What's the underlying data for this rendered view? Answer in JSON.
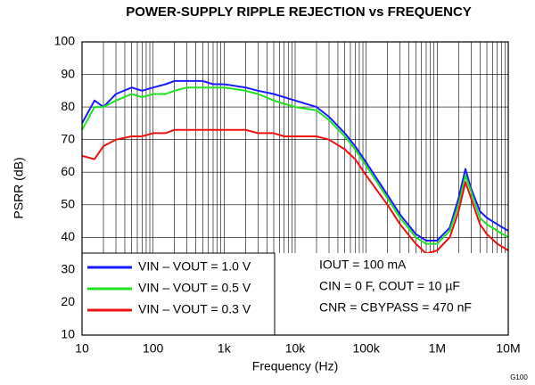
{
  "chart_data": {
    "type": "line",
    "title": "POWER-SUPPLY RIPPLE REJECTION vs FREQUENCY",
    "x_label": "Frequency (Hz)",
    "y_label": "PSRR (dB)",
    "figure_id": "G100",
    "x_log": true,
    "grid": true,
    "legend": "lower left",
    "x": [
      10,
      15,
      20,
      30,
      50,
      70,
      100,
      150,
      200,
      300,
      500,
      700,
      1000,
      2000,
      3000,
      5000,
      7000,
      10000,
      20000,
      30000,
      50000,
      70000,
      100000,
      200000,
      300000,
      500000,
      700000,
      1000000,
      1500000,
      2000000,
      2500000,
      3000000,
      4000000,
      5000000,
      7000000,
      10000000
    ],
    "series": [
      {
        "name": "VIN – VOUT = 1.0 V",
        "color": "#1a1aff",
        "values": [
          75,
          82,
          80,
          84,
          86,
          85,
          86,
          87,
          88,
          88,
          88,
          87,
          87,
          86,
          85,
          84,
          83,
          82,
          80,
          77,
          72,
          68,
          63,
          53,
          47,
          41,
          39,
          39,
          43,
          52,
          61,
          55,
          48,
          46,
          44,
          42
        ]
      },
      {
        "name": "VIN – VOUT = 0.5 V",
        "color": "#22e022",
        "values": [
          73,
          80,
          80,
          82,
          84,
          83,
          84,
          84,
          85,
          86,
          86,
          86,
          86,
          85,
          84,
          82,
          81,
          80,
          79,
          76,
          71,
          67,
          62,
          52,
          46,
          40,
          38,
          38,
          42,
          50,
          59,
          54,
          46,
          44,
          42,
          40
        ]
      },
      {
        "name": "VIN – VOUT = 0.3 V",
        "color": "#ee1111",
        "values": [
          65,
          64,
          68,
          70,
          71,
          71,
          72,
          72,
          73,
          73,
          73,
          73,
          73,
          73,
          72,
          72,
          71,
          71,
          71,
          70,
          67,
          64,
          59,
          50,
          44,
          38,
          35,
          36,
          40,
          48,
          57,
          52,
          44,
          41,
          38,
          36
        ]
      }
    ],
    "annotations": [
      "IOUT = 100 mA",
      "CIN = 0 F, COUT = 10 µF",
      "CNR = CBYPASS = 470 nF"
    ],
    "xlim": [
      10,
      10000000
    ],
    "xticks": [
      10,
      100,
      {
        "value": 1000,
        "label": "1k"
      },
      {
        "value": 10000,
        "label": "10k"
      },
      {
        "value": 100000,
        "label": "100k"
      },
      {
        "value": 1000000,
        "label": "1M"
      },
      {
        "value": 10000000,
        "label": "10M"
      }
    ],
    "ylim": [
      10,
      100
    ],
    "yticks": [
      10,
      20,
      30,
      40,
      50,
      60,
      70,
      80,
      90,
      100
    ]
  }
}
